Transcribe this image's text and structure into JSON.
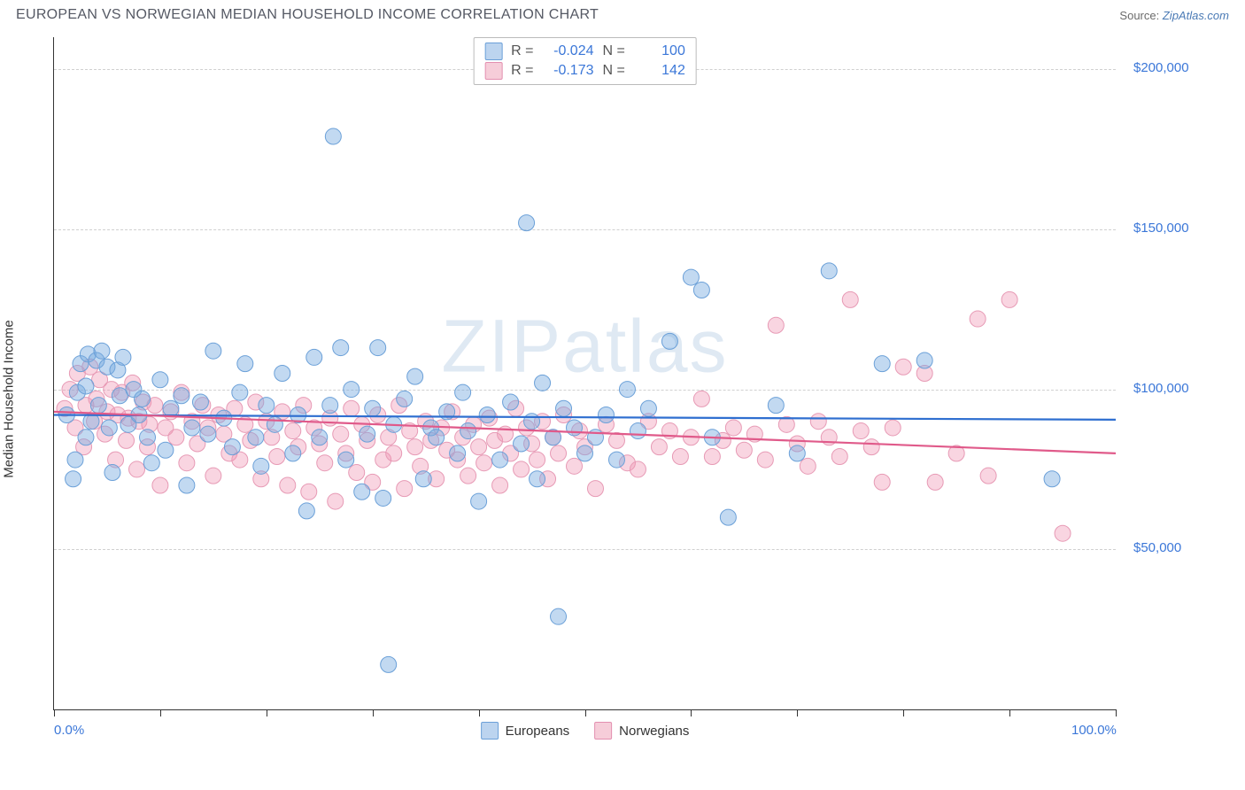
{
  "header": {
    "title": "EUROPEAN VS NORWEGIAN MEDIAN HOUSEHOLD INCOME CORRELATION CHART",
    "source_label": "Source:",
    "source_name": "ZipAtlas.com"
  },
  "chart": {
    "type": "scatter",
    "y_axis_label": "Median Household Income",
    "watermark": "ZIPatlas",
    "background_color": "#ffffff",
    "grid_color": "#d0d0d0",
    "axis_color": "#333333",
    "tick_label_color": "#3b77d8",
    "xlim": [
      0,
      100
    ],
    "ylim": [
      0,
      210000
    ],
    "y_ticks": [
      {
        "v": 50000,
        "label": "$50,000"
      },
      {
        "v": 100000,
        "label": "$100,000"
      },
      {
        "v": 150000,
        "label": "$150,000"
      },
      {
        "v": 200000,
        "label": "$200,000"
      }
    ],
    "x_ticks": [
      0,
      10,
      20,
      30,
      40,
      50,
      60,
      70,
      80,
      90,
      100
    ],
    "x_tick_labels": {
      "0": "0.0%",
      "100": "100.0%"
    },
    "marker_radius": 9,
    "marker_opacity": 0.45,
    "trend_line_width": 2.2,
    "series": {
      "europeans": {
        "label": "Europeans",
        "color_fill": "rgba(120,170,225,0.45)",
        "color_stroke": "#6ba0d8",
        "swatch_fill": "#bcd4ef",
        "swatch_border": "#6ba0d8",
        "R": "-0.024",
        "N": "100",
        "trend": {
          "x1": 0,
          "y1": 92000,
          "x2": 100,
          "y2": 90500,
          "color": "#2f6fd0"
        },
        "points": [
          [
            1.2,
            92000
          ],
          [
            1.8,
            72000
          ],
          [
            2,
            78000
          ],
          [
            2.2,
            99000
          ],
          [
            2.5,
            108000
          ],
          [
            3,
            101000
          ],
          [
            3,
            85000
          ],
          [
            3.2,
            111000
          ],
          [
            3.5,
            90000
          ],
          [
            4,
            109000
          ],
          [
            4.2,
            95000
          ],
          [
            4.5,
            112000
          ],
          [
            5,
            107000
          ],
          [
            5.2,
            88000
          ],
          [
            5.5,
            74000
          ],
          [
            6,
            106000
          ],
          [
            6.2,
            98000
          ],
          [
            6.5,
            110000
          ],
          [
            7,
            89000
          ],
          [
            7.5,
            100000
          ],
          [
            8,
            92000
          ],
          [
            8.3,
            97000
          ],
          [
            8.8,
            85000
          ],
          [
            9.2,
            77000
          ],
          [
            10,
            103000
          ],
          [
            10.5,
            81000
          ],
          [
            11,
            94000
          ],
          [
            12,
            98000
          ],
          [
            12.5,
            70000
          ],
          [
            13,
            88000
          ],
          [
            13.8,
            96000
          ],
          [
            14.5,
            86000
          ],
          [
            15,
            112000
          ],
          [
            16,
            91000
          ],
          [
            16.8,
            82000
          ],
          [
            17.5,
            99000
          ],
          [
            18,
            108000
          ],
          [
            19,
            85000
          ],
          [
            19.5,
            76000
          ],
          [
            20,
            95000
          ],
          [
            20.8,
            89000
          ],
          [
            21.5,
            105000
          ],
          [
            22.5,
            80000
          ],
          [
            23,
            92000
          ],
          [
            23.8,
            62000
          ],
          [
            24.5,
            110000
          ],
          [
            25,
            85000
          ],
          [
            26,
            95000
          ],
          [
            26.3,
            179000
          ],
          [
            27,
            113000
          ],
          [
            27.5,
            78000
          ],
          [
            28,
            100000
          ],
          [
            29,
            68000
          ],
          [
            29.5,
            86000
          ],
          [
            30,
            94000
          ],
          [
            30.5,
            113000
          ],
          [
            31,
            66000
          ],
          [
            31.5,
            14000
          ],
          [
            32,
            89000
          ],
          [
            33,
            97000
          ],
          [
            34,
            104000
          ],
          [
            34.8,
            72000
          ],
          [
            35.5,
            88000
          ],
          [
            36,
            85000
          ],
          [
            37,
            93000
          ],
          [
            38,
            80000
          ],
          [
            38.5,
            99000
          ],
          [
            39,
            87000
          ],
          [
            40,
            65000
          ],
          [
            40.8,
            92000
          ],
          [
            42,
            78000
          ],
          [
            43,
            96000
          ],
          [
            44,
            83000
          ],
          [
            44.5,
            152000
          ],
          [
            45,
            90000
          ],
          [
            45.5,
            72000
          ],
          [
            46,
            102000
          ],
          [
            47,
            85000
          ],
          [
            47.5,
            29000
          ],
          [
            48,
            94000
          ],
          [
            49,
            88000
          ],
          [
            50,
            80000
          ],
          [
            51,
            85000
          ],
          [
            52,
            92000
          ],
          [
            53,
            78000
          ],
          [
            54,
            100000
          ],
          [
            55,
            87000
          ],
          [
            56,
            94000
          ],
          [
            58,
            115000
          ],
          [
            60,
            135000
          ],
          [
            61,
            131000
          ],
          [
            62,
            85000
          ],
          [
            63.5,
            60000
          ],
          [
            68,
            95000
          ],
          [
            70,
            80000
          ],
          [
            73,
            137000
          ],
          [
            78,
            108000
          ],
          [
            82,
            109000
          ],
          [
            94,
            72000
          ]
        ]
      },
      "norwegians": {
        "label": "Norwegians",
        "color_fill": "rgba(240,150,180,0.4)",
        "color_stroke": "#e79ab5",
        "swatch_fill": "#f6cdd9",
        "swatch_border": "#e38fb0",
        "R": "-0.173",
        "N": "142",
        "trend": {
          "x1": 0,
          "y1": 93000,
          "x2": 100,
          "y2": 80000,
          "color": "#e05a8a"
        },
        "points": [
          [
            1,
            94000
          ],
          [
            1.5,
            100000
          ],
          [
            2,
            88000
          ],
          [
            2.2,
            105000
          ],
          [
            2.8,
            82000
          ],
          [
            3,
            95000
          ],
          [
            3.4,
            107000
          ],
          [
            3.8,
            90000
          ],
          [
            4,
            97000
          ],
          [
            4.3,
            103000
          ],
          [
            4.8,
            86000
          ],
          [
            5,
            93000
          ],
          [
            5.4,
            100000
          ],
          [
            5.8,
            78000
          ],
          [
            6,
            92000
          ],
          [
            6.4,
            99000
          ],
          [
            6.8,
            84000
          ],
          [
            7,
            91000
          ],
          [
            7.4,
            102000
          ],
          [
            7.8,
            75000
          ],
          [
            8,
            90000
          ],
          [
            8.4,
            96000
          ],
          [
            8.8,
            82000
          ],
          [
            9,
            89000
          ],
          [
            9.5,
            95000
          ],
          [
            10,
            70000
          ],
          [
            10.5,
            88000
          ],
          [
            11,
            93000
          ],
          [
            11.5,
            85000
          ],
          [
            12,
            99000
          ],
          [
            12.5,
            77000
          ],
          [
            13,
            90000
          ],
          [
            13.5,
            83000
          ],
          [
            14,
            95000
          ],
          [
            14.5,
            88000
          ],
          [
            15,
            73000
          ],
          [
            15.5,
            92000
          ],
          [
            16,
            86000
          ],
          [
            16.5,
            80000
          ],
          [
            17,
            94000
          ],
          [
            17.5,
            78000
          ],
          [
            18,
            89000
          ],
          [
            18.5,
            84000
          ],
          [
            19,
            96000
          ],
          [
            19.5,
            72000
          ],
          [
            20,
            90000
          ],
          [
            20.5,
            85000
          ],
          [
            21,
            79000
          ],
          [
            21.5,
            93000
          ],
          [
            22,
            70000
          ],
          [
            22.5,
            87000
          ],
          [
            23,
            82000
          ],
          [
            23.5,
            95000
          ],
          [
            24,
            68000
          ],
          [
            24.5,
            88000
          ],
          [
            25,
            83000
          ],
          [
            25.5,
            77000
          ],
          [
            26,
            91000
          ],
          [
            26.5,
            65000
          ],
          [
            27,
            86000
          ],
          [
            27.5,
            80000
          ],
          [
            28,
            94000
          ],
          [
            28.5,
            74000
          ],
          [
            29,
            89000
          ],
          [
            29.5,
            84000
          ],
          [
            30,
            71000
          ],
          [
            30.5,
            92000
          ],
          [
            31,
            78000
          ],
          [
            31.5,
            85000
          ],
          [
            32,
            80000
          ],
          [
            32.5,
            95000
          ],
          [
            33,
            69000
          ],
          [
            33.5,
            87000
          ],
          [
            34,
            82000
          ],
          [
            34.5,
            76000
          ],
          [
            35,
            90000
          ],
          [
            35.5,
            84000
          ],
          [
            36,
            72000
          ],
          [
            36.5,
            88000
          ],
          [
            37,
            81000
          ],
          [
            37.5,
            93000
          ],
          [
            38,
            78000
          ],
          [
            38.5,
            85000
          ],
          [
            39,
            73000
          ],
          [
            39.5,
            89000
          ],
          [
            40,
            82000
          ],
          [
            40.5,
            77000
          ],
          [
            41,
            91000
          ],
          [
            41.5,
            84000
          ],
          [
            42,
            70000
          ],
          [
            42.5,
            86000
          ],
          [
            43,
            80000
          ],
          [
            43.5,
            94000
          ],
          [
            44,
            75000
          ],
          [
            44.5,
            88000
          ],
          [
            45,
            83000
          ],
          [
            45.5,
            78000
          ],
          [
            46,
            90000
          ],
          [
            46.5,
            72000
          ],
          [
            47,
            85000
          ],
          [
            47.5,
            80000
          ],
          [
            48,
            92000
          ],
          [
            49,
            76000
          ],
          [
            49.5,
            87000
          ],
          [
            50,
            82000
          ],
          [
            51,
            69000
          ],
          [
            52,
            89000
          ],
          [
            53,
            84000
          ],
          [
            54,
            77000
          ],
          [
            55,
            75000
          ],
          [
            56,
            90000
          ],
          [
            57,
            82000
          ],
          [
            58,
            87000
          ],
          [
            59,
            79000
          ],
          [
            60,
            85000
          ],
          [
            61,
            97000
          ],
          [
            62,
            79000
          ],
          [
            63,
            84000
          ],
          [
            64,
            88000
          ],
          [
            65,
            81000
          ],
          [
            66,
            86000
          ],
          [
            67,
            78000
          ],
          [
            68,
            120000
          ],
          [
            69,
            89000
          ],
          [
            70,
            83000
          ],
          [
            71,
            76000
          ],
          [
            72,
            90000
          ],
          [
            73,
            85000
          ],
          [
            74,
            79000
          ],
          [
            75,
            128000
          ],
          [
            76,
            87000
          ],
          [
            77,
            82000
          ],
          [
            78,
            71000
          ],
          [
            79,
            88000
          ],
          [
            80,
            107000
          ],
          [
            82,
            105000
          ],
          [
            83,
            71000
          ],
          [
            85,
            80000
          ],
          [
            87,
            122000
          ],
          [
            88,
            73000
          ],
          [
            90,
            128000
          ],
          [
            95,
            55000
          ]
        ]
      }
    }
  }
}
